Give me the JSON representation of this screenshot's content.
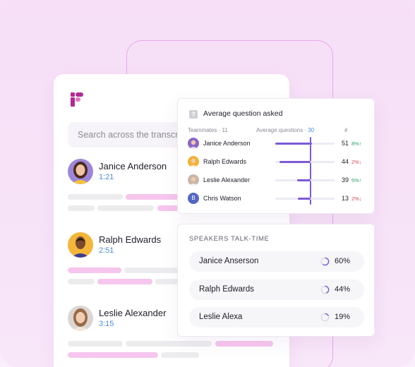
{
  "search": {
    "placeholder": "Search across the transcripts"
  },
  "transcripts": [
    {
      "name": "Janice Anderson",
      "time": "1:21"
    },
    {
      "name": "Ralph Edwards",
      "time": "2:51"
    },
    {
      "name": "Leslie Alexander",
      "time": "3:15"
    }
  ],
  "questions": {
    "title": "Average question asked",
    "col_teammates": "Teammates",
    "teammates_count": "11",
    "col_average": "Average questions",
    "average_value": "30",
    "col_count": "#",
    "rows": [
      {
        "name": "Janice Anderson",
        "count": "51",
        "delta": "8%",
        "trend": "up",
        "fill": 0.62,
        "avatar_color": "#8a67c7",
        "initial": ""
      },
      {
        "name": "Ralph Edwards",
        "count": "44",
        "delta": "2%",
        "trend": "down",
        "fill": 0.52,
        "avatar_color": "#f2b234",
        "initial": ""
      },
      {
        "name": "Leslie Alexander",
        "count": "39",
        "delta": "5%",
        "trend": "up",
        "fill": 0.23,
        "avatar_color": "#c9b7a9",
        "initial": ""
      },
      {
        "name": "Chris Watson",
        "count": "13",
        "delta": "2%",
        "trend": "down",
        "fill": 0.21,
        "avatar_color": "#5466c4",
        "initial": "B"
      }
    ]
  },
  "talk_time": {
    "title": "SPEAKERS TALK-TIME",
    "rows": [
      {
        "name": "Janice Anserson",
        "percent": "60%",
        "value": 0.6
      },
      {
        "name": "Ralph Edwards",
        "percent": "44%",
        "value": 0.44
      },
      {
        "name": "Leslie Alexa",
        "percent": "19%",
        "value": 0.19
      }
    ]
  },
  "colors": {
    "accent": "#7c5ad6",
    "pink_bar": "#f6c6ee",
    "brand": "#b02a93",
    "time_link": "#4b8cdf"
  }
}
